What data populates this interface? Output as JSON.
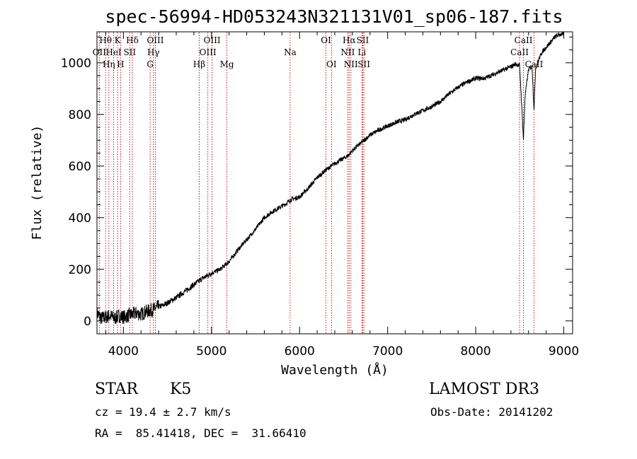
{
  "chart_data": {
    "type": "line",
    "title": "spec-56994-HD053243N321131V01_sp06-187.fits",
    "xlabel": "Wavelength (Å)",
    "ylabel": "Flux (relative)",
    "xlim": [
      3700,
      9100
    ],
    "ylim": [
      -50,
      1120
    ],
    "xticks": [
      4000,
      5000,
      6000,
      7000,
      8000,
      9000
    ],
    "yticks": [
      0,
      200,
      400,
      600,
      800,
      1000
    ],
    "series": [
      {
        "name": "spectrum",
        "x": [
          3700,
          3750,
          3800,
          3850,
          3900,
          3950,
          4000,
          4050,
          4100,
          4150,
          4200,
          4250,
          4300,
          4350,
          4400,
          4450,
          4500,
          4600,
          4700,
          4800,
          4900,
          5000,
          5100,
          5200,
          5300,
          5400,
          5500,
          5600,
          5700,
          5800,
          5850,
          5900,
          5950,
          6000,
          6100,
          6200,
          6300,
          6400,
          6500,
          6550,
          6600,
          6700,
          6800,
          6900,
          7000,
          7100,
          7200,
          7300,
          7400,
          7500,
          7600,
          7700,
          7800,
          7900,
          8000,
          8100,
          8200,
          8300,
          8400,
          8450,
          8498,
          8520,
          8542,
          8560,
          8600,
          8640,
          8662,
          8680,
          8700,
          8750,
          8800,
          8850,
          8900,
          8950,
          9000
        ],
        "y": [
          30,
          10,
          15,
          20,
          10,
          20,
          15,
          20,
          25,
          30,
          25,
          35,
          40,
          45,
          55,
          60,
          70,
          90,
          115,
          140,
          165,
          185,
          200,
          230,
          275,
          315,
          355,
          400,
          425,
          445,
          455,
          470,
          475,
          480,
          515,
          555,
          585,
          610,
          630,
          640,
          660,
          690,
          720,
          740,
          755,
          770,
          780,
          800,
          815,
          830,
          850,
          880,
          905,
          925,
          940,
          940,
          955,
          970,
          985,
          995,
          990,
          850,
          700,
          870,
          975,
          985,
          820,
          980,
          1000,
          1040,
          1060,
          1080,
          1100,
          1110,
          1110
        ]
      }
    ],
    "lines": [
      {
        "label": "Hθ",
        "x": 3798,
        "row": 0
      },
      {
        "label": "OII",
        "x": 3727,
        "row": 1
      },
      {
        "label": "Hη",
        "x": 3835,
        "row": 2
      },
      {
        "label": "HeI",
        "x": 3889,
        "row": 1
      },
      {
        "label": "K",
        "x": 3934,
        "row": 0
      },
      {
        "label": "H",
        "x": 3968,
        "row": 2
      },
      {
        "label": "Hδ",
        "x": 4102,
        "row": 0
      },
      {
        "label": "SII",
        "x": 4072,
        "row": 1
      },
      {
        "label": "OIII",
        "x": 4363,
        "row": 0
      },
      {
        "label": "Hγ",
        "x": 4341,
        "row": 1
      },
      {
        "label": "G",
        "x": 4304,
        "row": 2
      },
      {
        "label": "Hβ",
        "x": 4861,
        "row": 2
      },
      {
        "label": "OIII",
        "x": 4959,
        "row": 1
      },
      {
        "label": "OIII",
        "x": 5007,
        "row": 0
      },
      {
        "label": "Mg",
        "x": 5175,
        "row": 2
      },
      {
        "label": "Na",
        "x": 5893,
        "row": 1
      },
      {
        "label": "OI",
        "x": 6300,
        "row": 0
      },
      {
        "label": "OI",
        "x": 6363,
        "row": 2
      },
      {
        "label": "Hα",
        "x": 6563,
        "row": 0
      },
      {
        "label": "NII",
        "x": 6548,
        "row": 1
      },
      {
        "label": "NII",
        "x": 6583,
        "row": 2
      },
      {
        "label": "SII",
        "x": 6717,
        "row": 0
      },
      {
        "label": "Li",
        "x": 6708,
        "row": 1
      },
      {
        "label": "SII",
        "x": 6731,
        "row": 2
      },
      {
        "label": "CaII",
        "x": 8542,
        "row": 0
      },
      {
        "label": "CaII",
        "x": 8498,
        "row": 1
      },
      {
        "label": "CaII",
        "x": 8662,
        "row": 2
      }
    ]
  },
  "info": {
    "class_label": "STAR",
    "subclass": "K5",
    "survey": "LAMOST DR3",
    "cz": "cz = 19.4 ± 2.7 km/s",
    "obs_date": "Obs-Date: 20141202",
    "coords": "RA =  85.41418, DEC =  31.66410"
  }
}
